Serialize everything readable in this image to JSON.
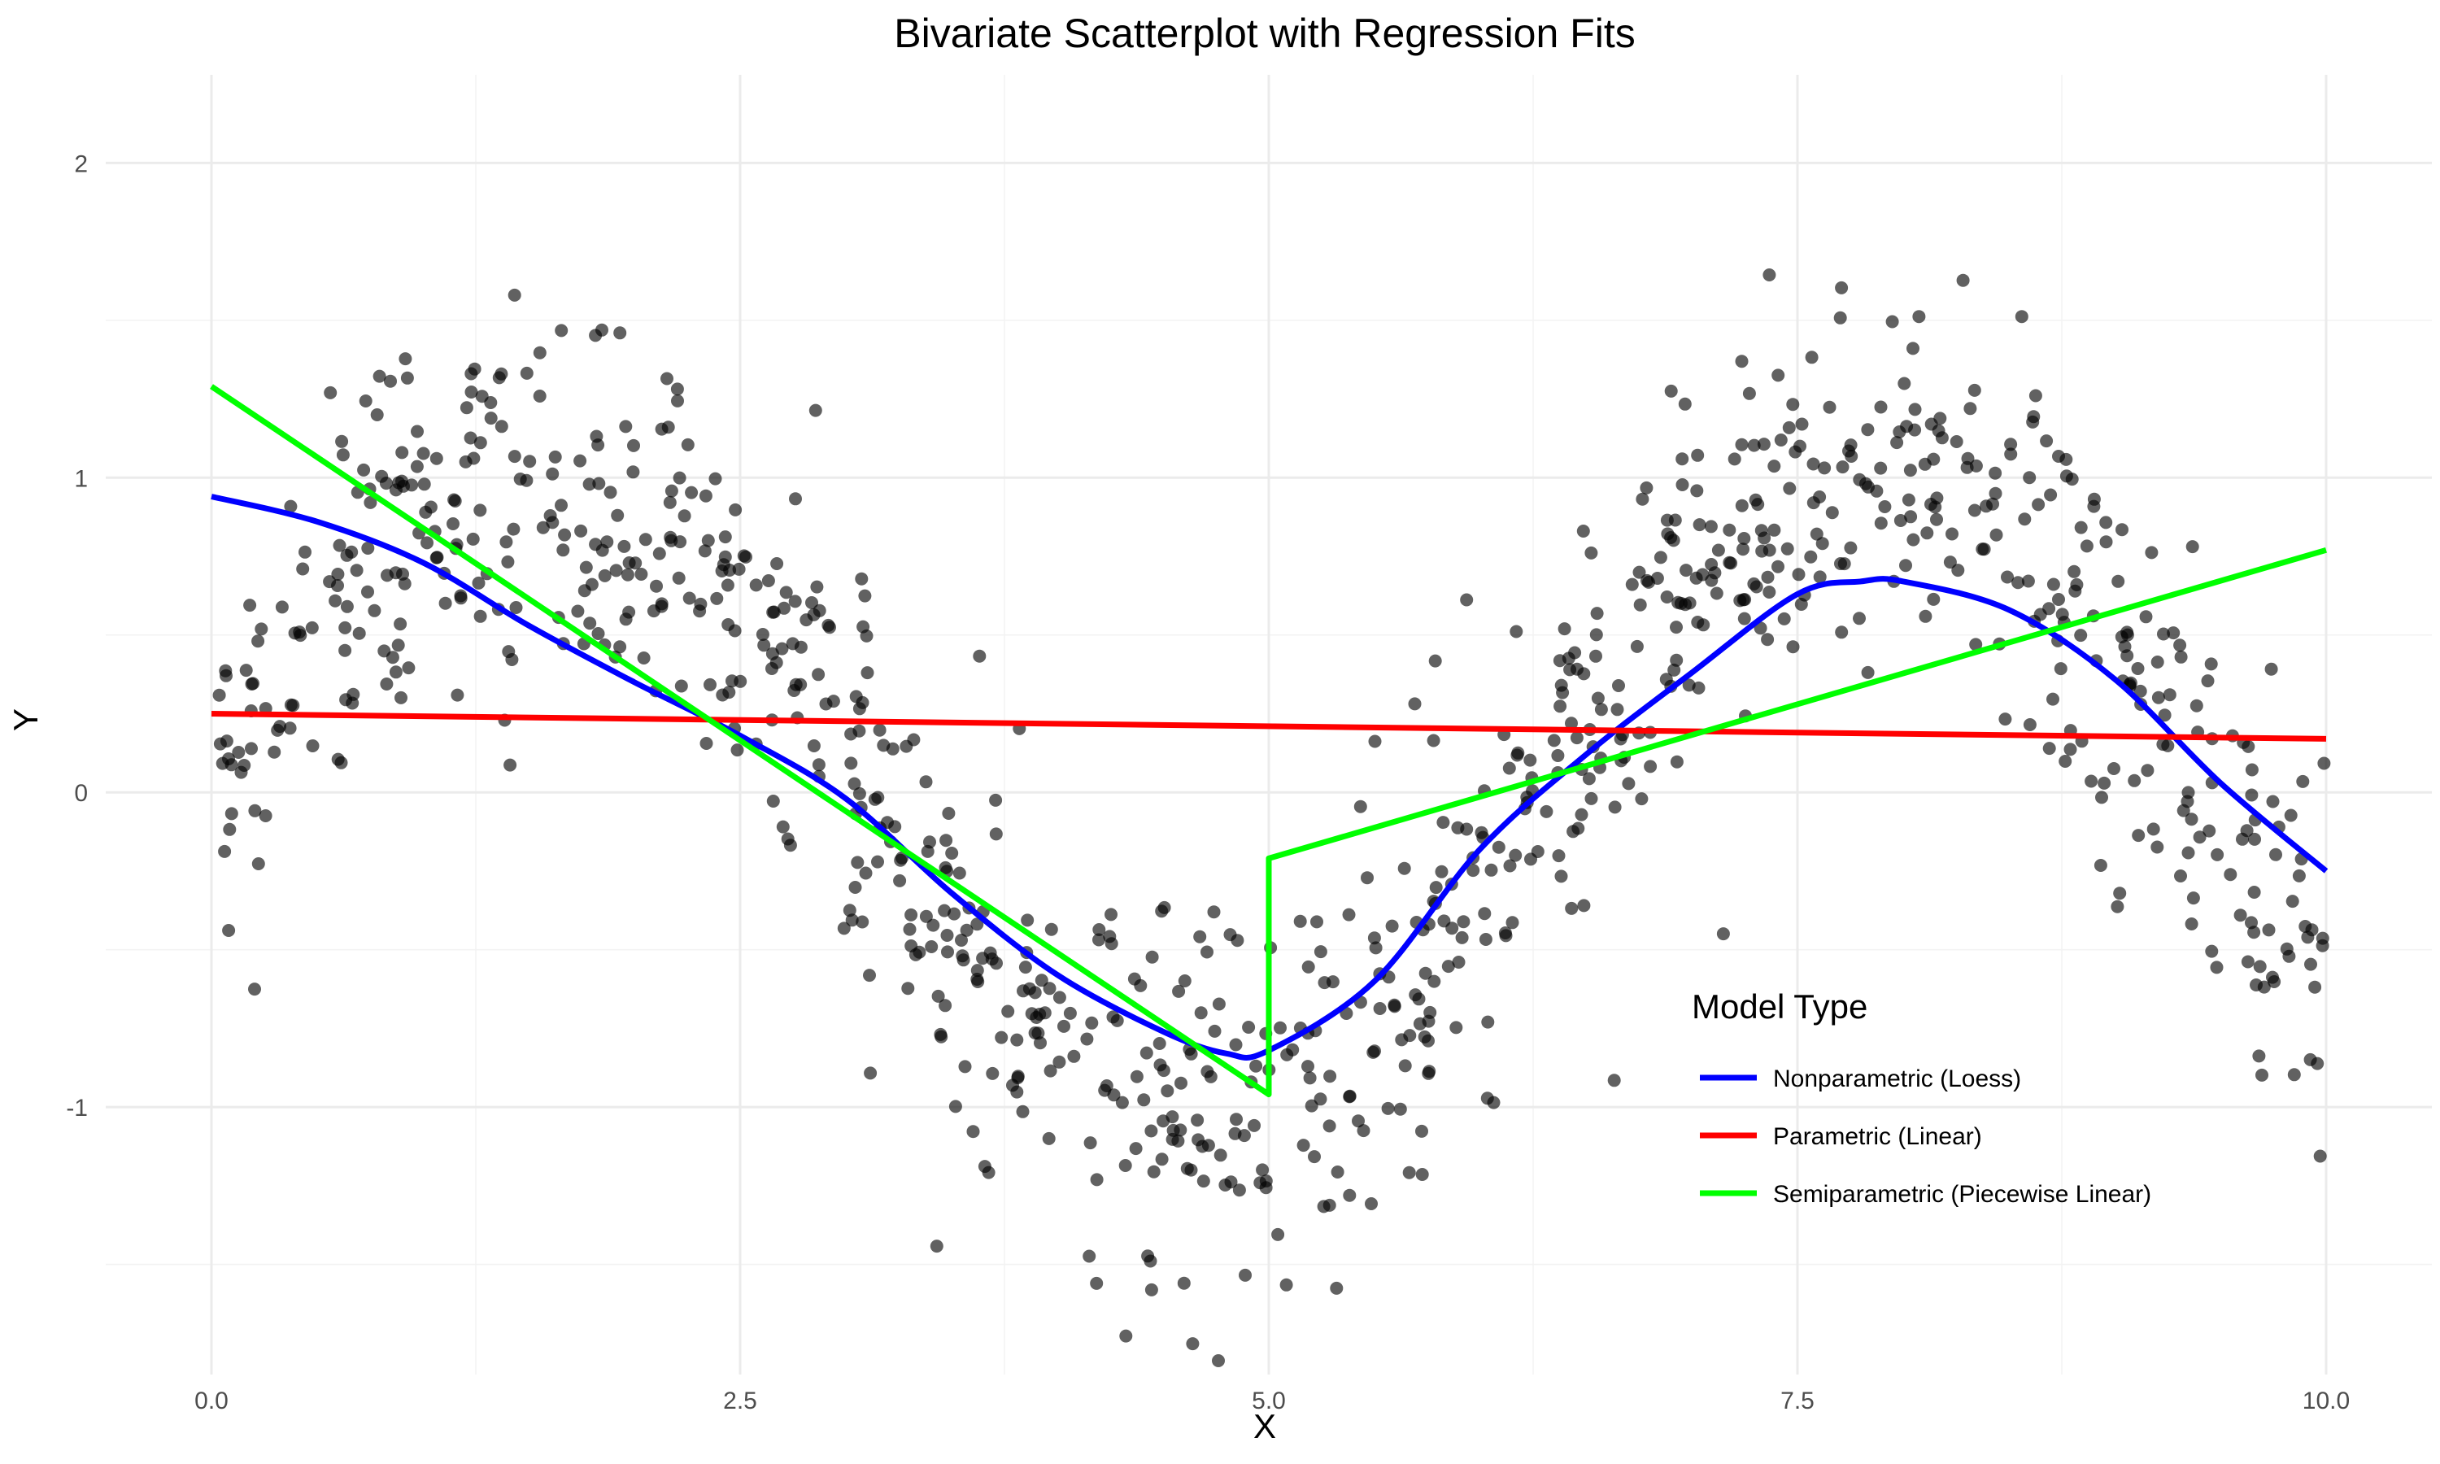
{
  "chart_data": {
    "type": "scatter",
    "title": "Bivariate Scatterplot with Regression Fits",
    "xlabel": "X",
    "ylabel": "Y",
    "xlim": [
      -0.5,
      10.5
    ],
    "ylim": [
      -1.85,
      2.28
    ],
    "x_ticks": [
      0,
      2.5,
      5,
      7.5,
      10
    ],
    "x_tick_labels": [
      "0.0",
      "2.5",
      "5.0",
      "7.5",
      "10.0"
    ],
    "y_ticks": [
      -1,
      0,
      1,
      2
    ],
    "y_tick_labels": [
      "-1",
      "0",
      "1",
      "2"
    ],
    "grid": true,
    "legend": {
      "title": "Model Type",
      "position": "bottom-right",
      "entries": [
        {
          "label": "Nonparametric (Loess)",
          "color": "#0000ff"
        },
        {
          "label": "Parametric (Linear)",
          "color": "#ff0000"
        },
        {
          "label": "Semiparametric (Piecewise Linear)",
          "color": "#00ff00"
        }
      ]
    },
    "points": {
      "description_generator": "sin-shaped cloud",
      "count": 1000
    },
    "series": [
      {
        "name": "Nonparametric (Loess)",
        "color": "#0000ff",
        "x": [
          0,
          0.5,
          1.0,
          1.5,
          2.0,
          2.5,
          3.0,
          3.5,
          4.0,
          4.5,
          4.8,
          5.0,
          5.5,
          6.0,
          6.5,
          7.0,
          7.5,
          7.8,
          8.0,
          8.5,
          9.0,
          9.5,
          10.0
        ],
        "y": [
          0.94,
          0.86,
          0.73,
          0.53,
          0.35,
          0.18,
          -0.02,
          -0.32,
          -0.58,
          -0.76,
          -0.83,
          -0.82,
          -0.6,
          -0.18,
          0.12,
          0.38,
          0.63,
          0.67,
          0.67,
          0.58,
          0.36,
          0.03,
          -0.25
        ]
      },
      {
        "name": "Parametric (Linear)",
        "color": "#ff0000",
        "x": [
          0,
          10
        ],
        "y": [
          0.25,
          0.17
        ]
      },
      {
        "name": "Semiparametric (Piecewise Linear)",
        "color": "#00ff00",
        "x": [
          0,
          5,
          5,
          10
        ],
        "y": [
          1.29,
          -0.96,
          -0.21,
          0.77
        ]
      }
    ]
  }
}
